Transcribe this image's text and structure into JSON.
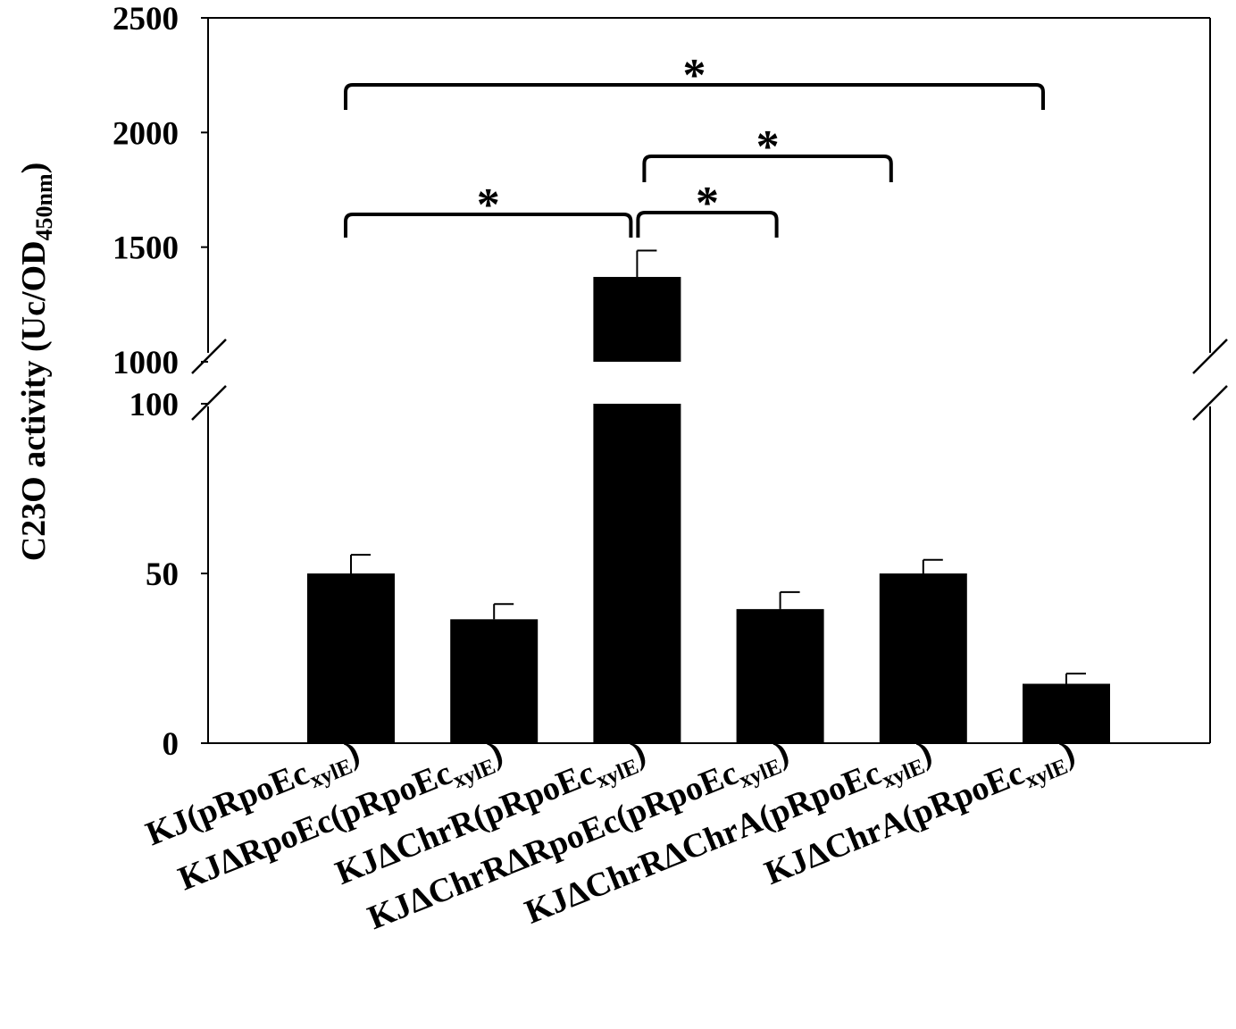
{
  "chart_data": {
    "type": "bar",
    "title": "",
    "ylabel": "C23O activity (Uc/OD",
    "ylabel_sub": "450nm",
    "ylabel_tail": ")",
    "axis_break": {
      "lower_range": [
        0,
        100
      ],
      "upper_range": [
        1000,
        2500
      ]
    },
    "yticks_lower": [
      "0",
      "50",
      "100"
    ],
    "yticks_upper": [
      "1000",
      "1500",
      "2000",
      "2500"
    ],
    "categories": [
      {
        "main": "KJ(pRpoEc",
        "sub": "xylE",
        "tail": ")"
      },
      {
        "main": "KJΔRpoEc(pRpoEc",
        "sub": "xylE",
        "tail": ")"
      },
      {
        "main": "KJΔChrR(pRpoEc",
        "sub": "xylE",
        "tail": ")"
      },
      {
        "main": "KJΔChrRΔRpoEc(pRpoEc",
        "sub": "xylE",
        "tail": ")"
      },
      {
        "main": "KJΔChrRΔChrA(pRpoEc",
        "sub": "xylE",
        "tail": ")"
      },
      {
        "main": "KJΔChrA(pRpoEc",
        "sub": "xylE",
        "tail": ")"
      }
    ],
    "values": [
      50,
      36.5,
      1370,
      39.5,
      50,
      17.5
    ],
    "errors": [
      5.5,
      4.5,
      115,
      5,
      4,
      3
    ],
    "bar_color": "#000000",
    "significance": [
      {
        "from": 0,
        "to": 2,
        "label": "*"
      },
      {
        "from": 2,
        "to": 3,
        "label": "*"
      },
      {
        "from": 2,
        "to": 4,
        "label": "*"
      },
      {
        "from": 0,
        "to": 5,
        "label": "*"
      }
    ]
  }
}
